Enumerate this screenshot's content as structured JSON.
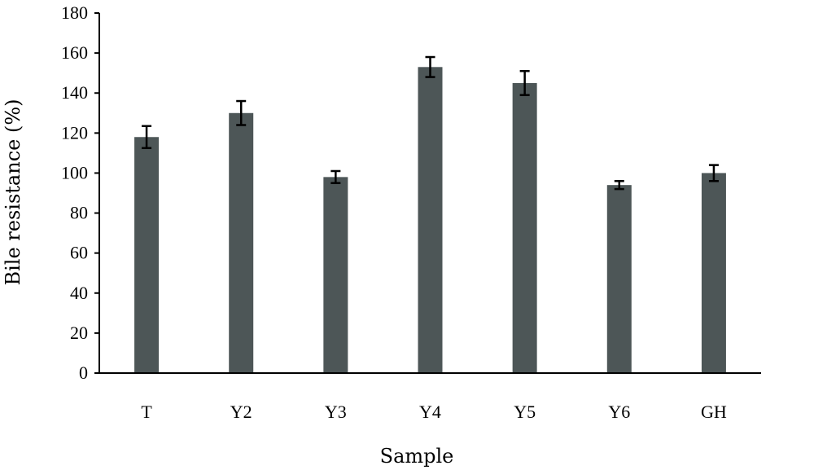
{
  "chart_data": {
    "type": "bar",
    "title": "",
    "xlabel": "Sample",
    "ylabel": "Bile resistance (%)",
    "categories": [
      "T",
      "Y2",
      "Y3",
      "Y4",
      "Y5",
      "Y6",
      "GH"
    ],
    "values": [
      118,
      130,
      98,
      153,
      145,
      94,
      100
    ],
    "error": [
      5.5,
      6,
      3,
      5,
      6,
      2,
      4
    ],
    "ylim": [
      0,
      180
    ],
    "yticks": [
      "0",
      "20",
      "40",
      "60",
      "80",
      "100",
      "120",
      "140",
      "160",
      "180"
    ],
    "grid": false,
    "legend": "none",
    "bar_color": "#4d5657",
    "axis_color": "#000000"
  }
}
